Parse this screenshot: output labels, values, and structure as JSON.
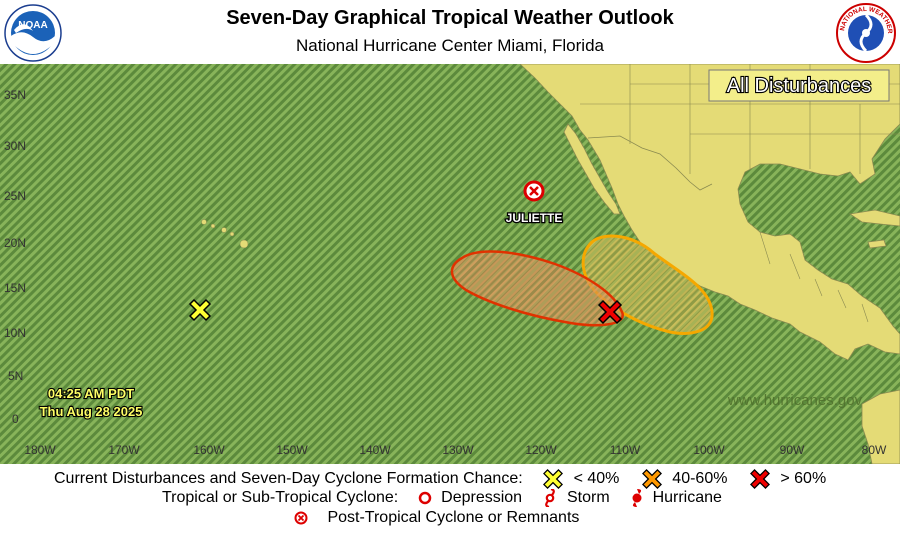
{
  "header": {
    "title": "Seven-Day Graphical Tropical Weather Outlook",
    "subtitle": "National Hurricane Center  Miami, Florida",
    "left_logo": "noaa-logo",
    "left_logo_text": "NOAA",
    "right_logo": "nws-logo",
    "right_logo_text": "NATIONAL WEATHER SERVICE"
  },
  "map": {
    "view_label": "All Disturbances",
    "timestamp_time": "04:25 AM PDT",
    "timestamp_date": "Thu Aug 28 2025",
    "watermark": "www.hurricanes.gov",
    "lat_labels": [
      "35N",
      "30N",
      "25N",
      "20N",
      "15N",
      "10N",
      "5N",
      "0"
    ],
    "lon_labels": [
      "180W",
      "170W",
      "160W",
      "150W",
      "140W",
      "130W",
      "120W",
      "110W",
      "100W",
      "90W",
      "80W"
    ],
    "storm_label": "JULIETTE",
    "colors": {
      "ocean": "#6f9c48",
      "land": "#e4db76",
      "low_chance": "#ffff33",
      "medium_chance": "#ff9900",
      "high_chance": "#ee0000",
      "label_text": "#ffff66"
    }
  },
  "legend": {
    "row1_label": "Current Disturbances and Seven-Day Cyclone Formation Chance:",
    "low_label": "< 40%",
    "medium_label": "40-60%",
    "high_label": "> 60%",
    "row2_label": "Tropical or Sub-Tropical Cyclone:",
    "depression_label": "Depression",
    "storm_label": "Storm",
    "hurricane_label": "Hurricane",
    "row3_label": "Post-Tropical Cyclone or Remnants"
  }
}
